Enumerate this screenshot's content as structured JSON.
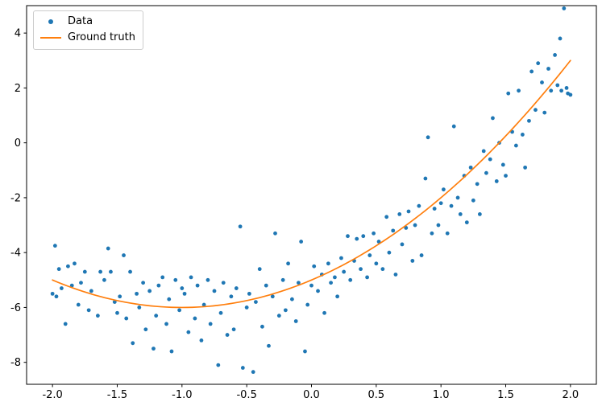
{
  "figure": {
    "background": "#ffffff",
    "spine_color": "#000000",
    "tick_label_color": "#000000"
  },
  "legend": {
    "position": "upper left",
    "items": [
      {
        "label": "Data",
        "marker": "dot",
        "color": "#1f77b4"
      },
      {
        "label": "Ground truth",
        "marker": "line",
        "color": "#ff7f0e"
      }
    ]
  },
  "chart_data": {
    "type": "scatter",
    "title": "",
    "xlabel": "",
    "ylabel": "",
    "xlim": [
      -2.2,
      2.2
    ],
    "ylim": [
      -8.8,
      5.0
    ],
    "x_ticks": [
      -2.0,
      -1.5,
      -1.0,
      -0.5,
      0.0,
      0.5,
      1.0,
      1.5,
      2.0
    ],
    "x_tick_labels": [
      "-2.0",
      "-1.5",
      "-1.0",
      "-0.5",
      "0.0",
      "0.5",
      "1.0",
      "1.5",
      "2.0"
    ],
    "y_ticks": [
      -8,
      -6,
      -4,
      -2,
      0,
      2,
      4
    ],
    "y_tick_labels": [
      "-8",
      "-6",
      "-4",
      "-2",
      "0",
      "2",
      "4"
    ],
    "grid": false,
    "legend_position": "upper left",
    "series": [
      {
        "name": "Data",
        "type": "scatter",
        "color": "#1f77b4",
        "marker_radius": 2.4,
        "points": [
          [
            -2.0,
            -5.5
          ],
          [
            -1.98,
            -3.75
          ],
          [
            -1.97,
            -5.6
          ],
          [
            -1.95,
            -4.6
          ],
          [
            -1.93,
            -5.3
          ],
          [
            -1.9,
            -6.6
          ],
          [
            -1.88,
            -4.5
          ],
          [
            -1.85,
            -5.2
          ],
          [
            -1.83,
            -4.4
          ],
          [
            -1.8,
            -5.9
          ],
          [
            -1.78,
            -5.1
          ],
          [
            -1.75,
            -4.7
          ],
          [
            -1.72,
            -6.1
          ],
          [
            -1.7,
            -5.4
          ],
          [
            -1.65,
            -6.3
          ],
          [
            -1.63,
            -4.7
          ],
          [
            -1.6,
            -5.0
          ],
          [
            -1.57,
            -3.85
          ],
          [
            -1.55,
            -4.7
          ],
          [
            -1.52,
            -5.8
          ],
          [
            -1.5,
            -6.2
          ],
          [
            -1.48,
            -5.6
          ],
          [
            -1.45,
            -4.1
          ],
          [
            -1.43,
            -6.4
          ],
          [
            -1.4,
            -4.7
          ],
          [
            -1.38,
            -7.3
          ],
          [
            -1.35,
            -5.5
          ],
          [
            -1.33,
            -6.0
          ],
          [
            -1.3,
            -5.1
          ],
          [
            -1.28,
            -6.8
          ],
          [
            -1.25,
            -5.4
          ],
          [
            -1.22,
            -7.5
          ],
          [
            -1.2,
            -6.3
          ],
          [
            -1.18,
            -5.2
          ],
          [
            -1.15,
            -4.9
          ],
          [
            -1.12,
            -6.6
          ],
          [
            -1.1,
            -5.7
          ],
          [
            -1.08,
            -7.6
          ],
          [
            -1.05,
            -5.0
          ],
          [
            -1.02,
            -6.1
          ],
          [
            -1.0,
            -5.3
          ],
          [
            -0.98,
            -5.5
          ],
          [
            -0.95,
            -6.9
          ],
          [
            -0.93,
            -4.9
          ],
          [
            -0.9,
            -6.4
          ],
          [
            -0.88,
            -5.2
          ],
          [
            -0.85,
            -7.2
          ],
          [
            -0.83,
            -5.9
          ],
          [
            -0.8,
            -5.0
          ],
          [
            -0.78,
            -6.6
          ],
          [
            -0.75,
            -5.4
          ],
          [
            -0.72,
            -8.1
          ],
          [
            -0.7,
            -6.2
          ],
          [
            -0.68,
            -5.1
          ],
          [
            -0.65,
            -7.0
          ],
          [
            -0.62,
            -5.6
          ],
          [
            -0.6,
            -6.8
          ],
          [
            -0.58,
            -5.3
          ],
          [
            -0.55,
            -3.05
          ],
          [
            -0.53,
            -8.2
          ],
          [
            -0.5,
            -6.0
          ],
          [
            -0.48,
            -5.5
          ],
          [
            -0.45,
            -8.35
          ],
          [
            -0.43,
            -5.8
          ],
          [
            -0.4,
            -4.6
          ],
          [
            -0.38,
            -6.7
          ],
          [
            -0.35,
            -5.2
          ],
          [
            -0.33,
            -7.4
          ],
          [
            -0.3,
            -5.6
          ],
          [
            -0.28,
            -3.3
          ],
          [
            -0.25,
            -6.3
          ],
          [
            -0.22,
            -5.0
          ],
          [
            -0.2,
            -6.1
          ],
          [
            -0.18,
            -4.4
          ],
          [
            -0.15,
            -5.7
          ],
          [
            -0.12,
            -6.5
          ],
          [
            -0.1,
            -5.1
          ],
          [
            -0.08,
            -3.6
          ],
          [
            -0.05,
            -7.6
          ],
          [
            -0.03,
            -5.9
          ],
          [
            0.0,
            -5.2
          ],
          [
            0.02,
            -4.5
          ],
          [
            0.05,
            -5.4
          ],
          [
            0.08,
            -4.8
          ],
          [
            0.1,
            -6.2
          ],
          [
            0.13,
            -4.4
          ],
          [
            0.15,
            -5.1
          ],
          [
            0.18,
            -4.9
          ],
          [
            0.2,
            -5.6
          ],
          [
            0.23,
            -4.2
          ],
          [
            0.25,
            -4.7
          ],
          [
            0.28,
            -3.4
          ],
          [
            0.3,
            -5.0
          ],
          [
            0.33,
            -4.3
          ],
          [
            0.35,
            -3.5
          ],
          [
            0.38,
            -4.6
          ],
          [
            0.4,
            -3.4
          ],
          [
            0.43,
            -4.9
          ],
          [
            0.45,
            -4.1
          ],
          [
            0.48,
            -3.3
          ],
          [
            0.5,
            -4.4
          ],
          [
            0.52,
            -3.6
          ],
          [
            0.55,
            -4.6
          ],
          [
            0.58,
            -2.7
          ],
          [
            0.6,
            -4.0
          ],
          [
            0.63,
            -3.2
          ],
          [
            0.65,
            -4.8
          ],
          [
            0.68,
            -2.6
          ],
          [
            0.7,
            -3.7
          ],
          [
            0.73,
            -3.1
          ],
          [
            0.75,
            -2.5
          ],
          [
            0.78,
            -4.3
          ],
          [
            0.8,
            -3.0
          ],
          [
            0.83,
            -2.3
          ],
          [
            0.85,
            -4.1
          ],
          [
            0.88,
            -1.3
          ],
          [
            0.9,
            0.2
          ],
          [
            0.93,
            -3.3
          ],
          [
            0.95,
            -2.4
          ],
          [
            0.98,
            -3.0
          ],
          [
            1.0,
            -2.2
          ],
          [
            1.02,
            -1.7
          ],
          [
            1.05,
            -3.3
          ],
          [
            1.08,
            -2.3
          ],
          [
            1.1,
            0.6
          ],
          [
            1.13,
            -2.0
          ],
          [
            1.15,
            -2.6
          ],
          [
            1.18,
            -1.2
          ],
          [
            1.2,
            -2.9
          ],
          [
            1.23,
            -0.9
          ],
          [
            1.25,
            -2.1
          ],
          [
            1.28,
            -1.5
          ],
          [
            1.3,
            -2.6
          ],
          [
            1.33,
            -0.3
          ],
          [
            1.35,
            -1.1
          ],
          [
            1.38,
            -0.6
          ],
          [
            1.4,
            0.9
          ],
          [
            1.43,
            -1.4
          ],
          [
            1.45,
            0.0
          ],
          [
            1.48,
            -0.8
          ],
          [
            1.5,
            -1.2
          ],
          [
            1.52,
            1.8
          ],
          [
            1.55,
            0.4
          ],
          [
            1.58,
            -0.1
          ],
          [
            1.6,
            1.9
          ],
          [
            1.63,
            0.3
          ],
          [
            1.65,
            -0.9
          ],
          [
            1.68,
            0.8
          ],
          [
            1.7,
            2.6
          ],
          [
            1.73,
            1.2
          ],
          [
            1.75,
            2.9
          ],
          [
            1.78,
            2.2
          ],
          [
            1.8,
            1.1
          ],
          [
            1.83,
            2.7
          ],
          [
            1.85,
            1.9
          ],
          [
            1.88,
            3.2
          ],
          [
            1.9,
            2.1
          ],
          [
            1.92,
            3.8
          ],
          [
            1.93,
            1.9
          ],
          [
            1.95,
            4.9
          ],
          [
            1.97,
            2.0
          ],
          [
            1.98,
            1.8
          ],
          [
            2.0,
            1.75
          ]
        ]
      },
      {
        "name": "Ground truth",
        "type": "line",
        "color": "#ff7f0e",
        "line_width": 1.7,
        "formula": "y = x^2 + 2x - 5",
        "coefficients": [
          -5,
          2,
          1
        ],
        "x_range": [
          -2.0,
          2.0
        ]
      }
    ]
  }
}
